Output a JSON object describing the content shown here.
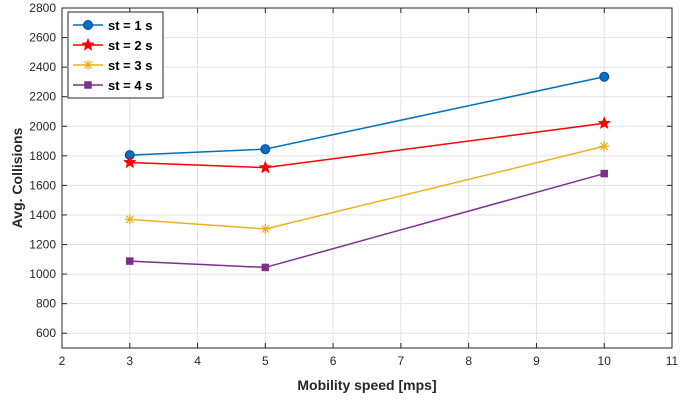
{
  "chart_data": {
    "type": "line",
    "title": "",
    "xlabel": "Mobility speed [mps]",
    "ylabel": "Avg. Collisions",
    "xlim": [
      2,
      11
    ],
    "ylim": [
      500,
      2800
    ],
    "x_ticks": [
      "2",
      "3",
      "4",
      "5",
      "6",
      "7",
      "8",
      "9",
      "10",
      "11"
    ],
    "y_ticks": [
      "600",
      "800",
      "1000",
      "1200",
      "1400",
      "1600",
      "1800",
      "2000",
      "2200",
      "2400",
      "2600",
      "2800"
    ],
    "grid": true,
    "legend_position": "top-left",
    "x": [
      3,
      5,
      10
    ],
    "series": [
      {
        "name": "st = 1 s",
        "values": [
          1805,
          1845,
          2335
        ],
        "color": "#0072bd",
        "marker": "circle"
      },
      {
        "name": "st = 2 s",
        "values": [
          1755,
          1720,
          2020
        ],
        "color": "#ff0000",
        "marker": "star"
      },
      {
        "name": "st = 3 s",
        "values": [
          1370,
          1305,
          1865
        ],
        "color": "#edb120",
        "marker": "asterisk"
      },
      {
        "name": "st = 4 s",
        "values": [
          1088,
          1045,
          1680
        ],
        "color": "#7e2f8e",
        "marker": "square"
      }
    ]
  }
}
